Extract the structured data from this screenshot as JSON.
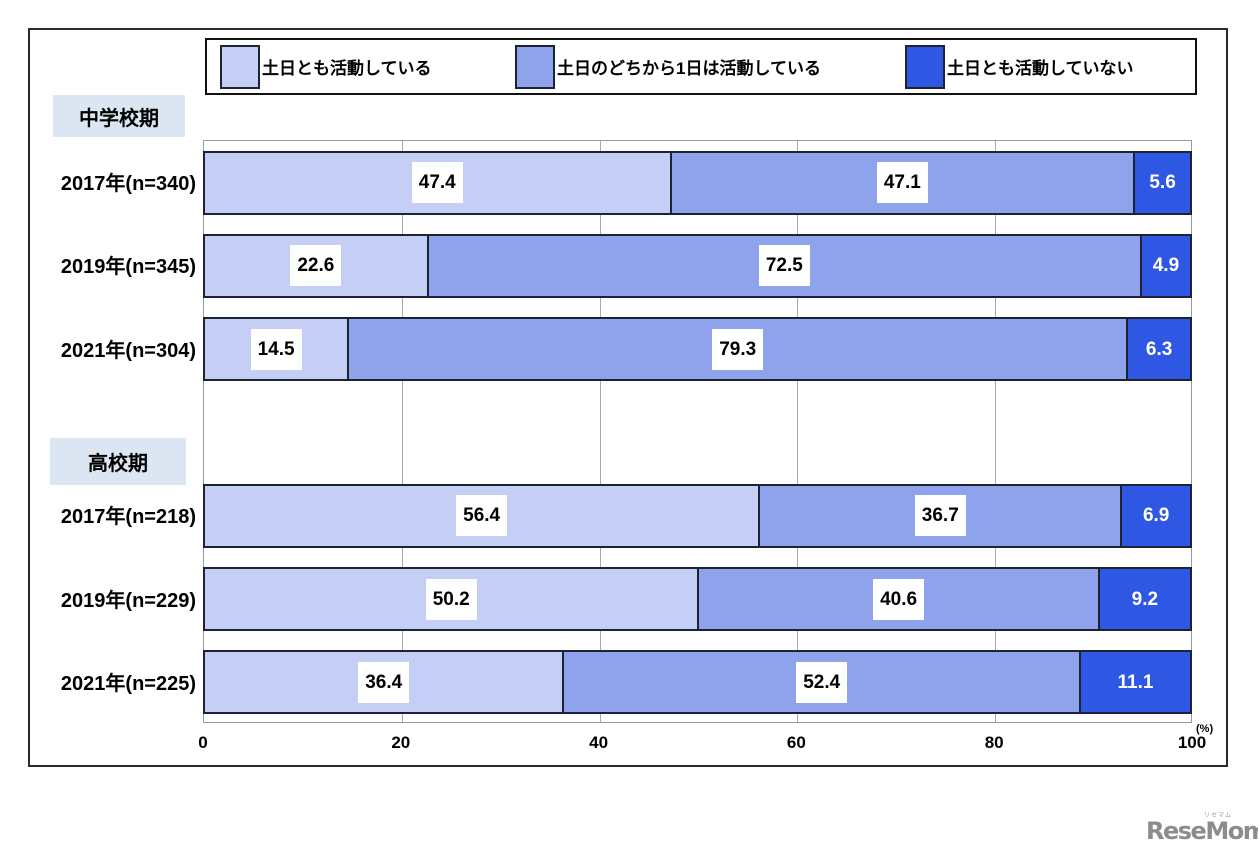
{
  "legend": {
    "items": [
      {
        "label": "土日とも活動している",
        "color": "#c5cff5"
      },
      {
        "label": "土日のどちから1日は活動している",
        "color": "#8fa2ec"
      },
      {
        "label": "土日とも活動していない",
        "color": "#2e57e4"
      }
    ]
  },
  "chart_data": {
    "type": "bar",
    "orientation": "horizontal",
    "stacked": true,
    "series": [
      "土日とも活動している",
      "土日のどちから1日は活動している",
      "土日とも活動していない"
    ],
    "groups": [
      {
        "label": "中学校期",
        "rows": [
          {
            "label": "2017年(n=340)",
            "values": [
              47.4,
              47.1,
              5.6
            ]
          },
          {
            "label": "2019年(n=345)",
            "values": [
              22.6,
              72.5,
              4.9
            ]
          },
          {
            "label": "2021年(n=304)",
            "values": [
              14.5,
              79.3,
              6.3
            ]
          }
        ]
      },
      {
        "label": "高校期",
        "rows": [
          {
            "label": "2017年(n=218)",
            "values": [
              56.4,
              36.7,
              6.9
            ]
          },
          {
            "label": "2019年(n=229)",
            "values": [
              50.2,
              40.6,
              9.2
            ]
          },
          {
            "label": "2021年(n=225)",
            "values": [
              36.4,
              52.4,
              11.1
            ]
          }
        ]
      }
    ],
    "x_axis": {
      "ticks": [
        0,
        20,
        40,
        60,
        80,
        100
      ],
      "range": [
        0,
        100
      ],
      "unit_label": "(%)"
    },
    "colors": {
      "series": [
        "#c5cff5",
        "#8fa2ec",
        "#2e57e4"
      ],
      "bar_border": "#1c2333",
      "section_label_bg": "#dce6f3",
      "gridline": "#aaaaaa"
    }
  },
  "footer": {
    "logo_text": "ReseMom.",
    "logo_ruby": "リセマム"
  }
}
